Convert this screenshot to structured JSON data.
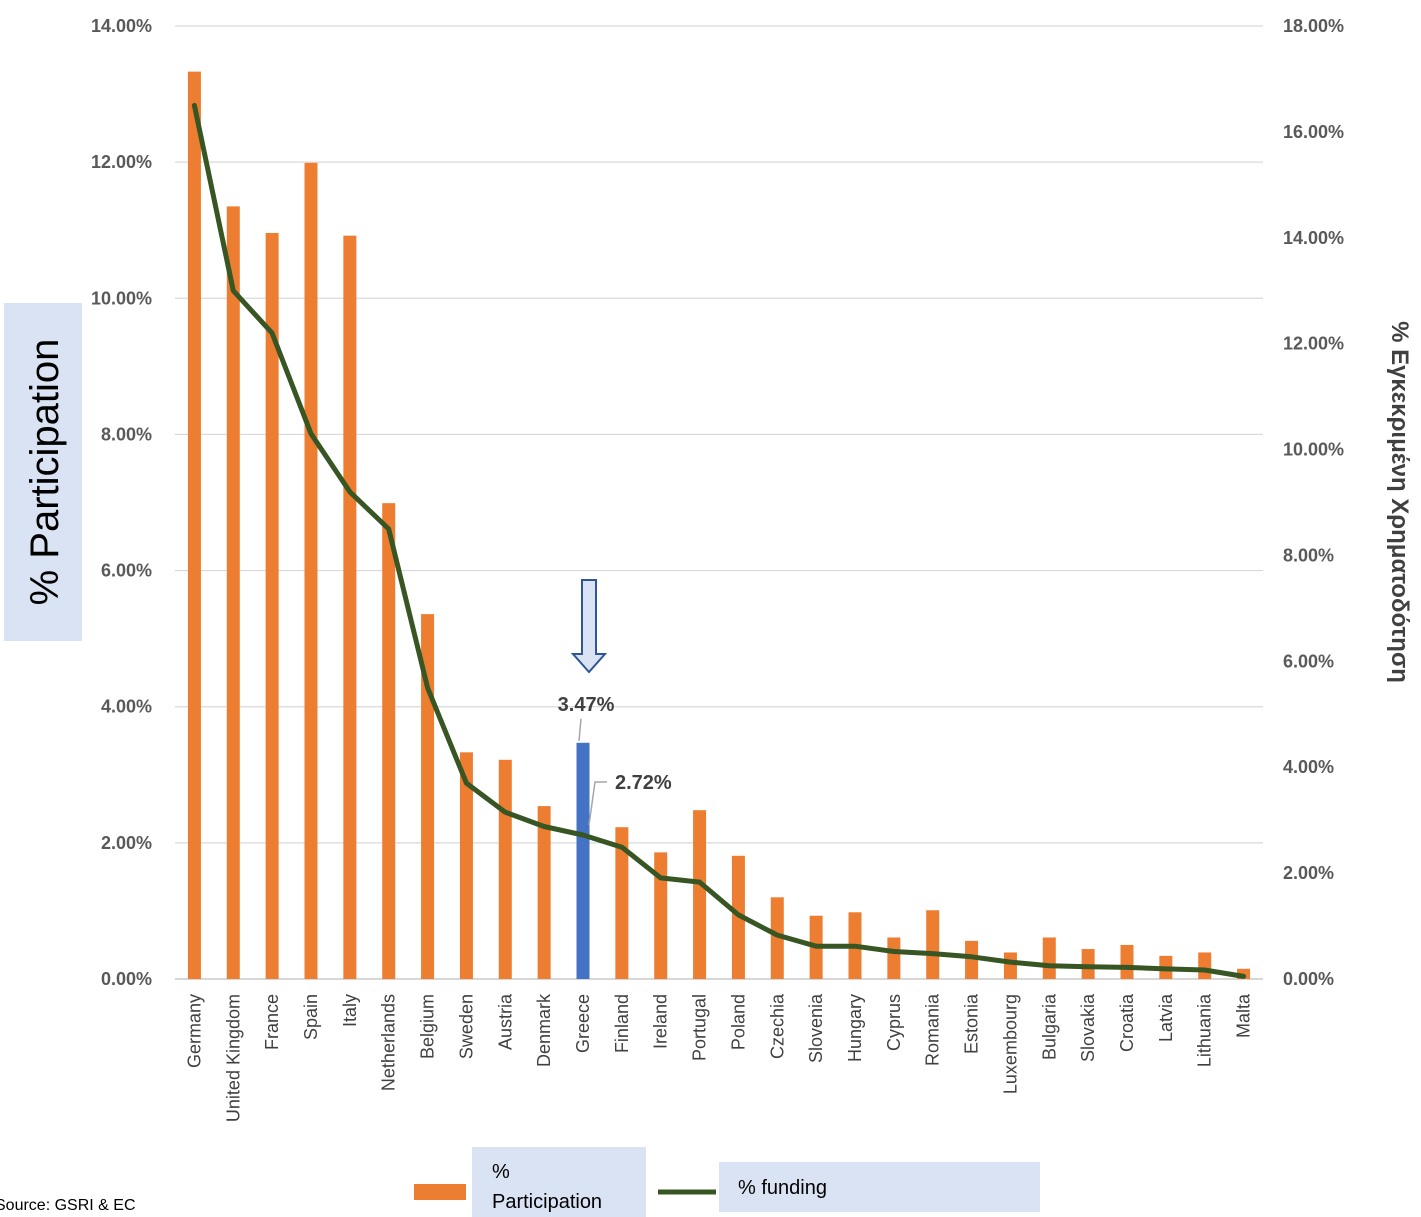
{
  "chart_data": {
    "type": "bar",
    "categories": [
      "Germany",
      "United Kingdom",
      "France",
      "Spain",
      "Italy",
      "Netherlands",
      "Belgium",
      "Sweden",
      "Austria",
      "Denmark",
      "Greece",
      "Finland",
      "Ireland",
      "Portugal",
      "Poland",
      "Czechia",
      "Slovenia",
      "Hungary",
      "Cyprus",
      "Romania",
      "Estonia",
      "Luxembourg",
      "Bulgaria",
      "Slovakia",
      "Croatia",
      "Latvia",
      "Lithuania",
      "Malta"
    ],
    "series": [
      {
        "name": "% Participation",
        "kind": "bar",
        "axis": "left",
        "color": "#ED7D31",
        "highlight": {
          "category": "Greece",
          "color": "#4472C4"
        },
        "values": [
          13.33,
          11.35,
          10.96,
          11.99,
          10.92,
          6.99,
          5.36,
          3.33,
          3.22,
          2.54,
          3.47,
          2.23,
          1.86,
          2.48,
          1.81,
          1.2,
          0.93,
          0.98,
          0.61,
          1.01,
          0.56,
          0.39,
          0.61,
          0.44,
          0.5,
          0.34,
          0.39,
          0.15
        ]
      },
      {
        "name": "% funding",
        "kind": "line",
        "axis": "right",
        "color": "#375623",
        "values": [
          16.5,
          13.0,
          12.2,
          10.3,
          9.2,
          8.5,
          5.5,
          3.7,
          3.15,
          2.88,
          2.72,
          2.49,
          1.91,
          1.83,
          1.21,
          0.83,
          0.62,
          0.62,
          0.52,
          0.48,
          0.42,
          0.32,
          0.25,
          0.23,
          0.22,
          0.19,
          0.17,
          0.05
        ]
      }
    ],
    "y_left": {
      "label": "% Participation",
      "ticks": [
        "0.00%",
        "2.00%",
        "4.00%",
        "6.00%",
        "8.00%",
        "10.00%",
        "12.00%",
        "14.00%"
      ],
      "ylim": [
        0,
        14
      ]
    },
    "y_right": {
      "label": "% Εγκεκριμένη Χρηματοδότηση",
      "ticks": [
        "0.00%",
        "2.00%",
        "4.00%",
        "6.00%",
        "8.00%",
        "10.00%",
        "12.00%",
        "14.00%",
        "16.00%",
        "18.00%"
      ],
      "ylim": [
        0,
        18
      ]
    },
    "data_labels": {
      "bar": "3.47%",
      "line": "2.72%",
      "category": "Greece"
    },
    "grid": true,
    "legend": {
      "position": "bottom",
      "entries": [
        "% Participation",
        "% funding"
      ]
    },
    "source": "Source: GSRI & EC"
  }
}
